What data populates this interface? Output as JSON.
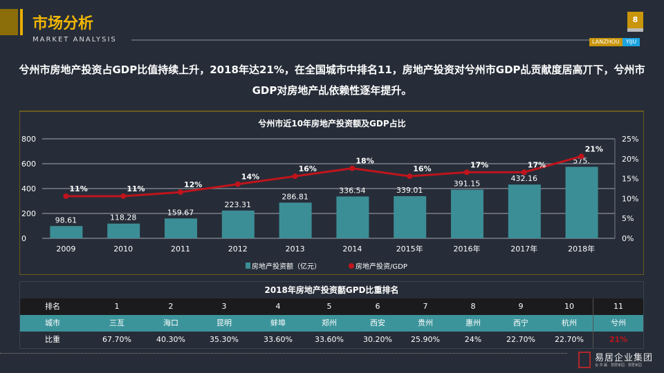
{
  "header": {
    "title": "市场分析",
    "subtitle": "MARKET ANALYSIS",
    "page": "8",
    "brand_left": "LANZHOU",
    "brand_right": "YIJU"
  },
  "lead": "兮州市房地产投资占GDP比值持续上升，2018年达21%，在全国城市中排名11，房地产投资对兮州市GDP乩贡献度居高丌下，兮州市GDP对房地产乩依赖性逐年提升。",
  "chart_data": {
    "type": "bar+line",
    "title": "兮州市近10年房地产投资额及GDP占比",
    "categories": [
      "2009",
      "2010",
      "2011",
      "2012",
      "2013",
      "2014",
      "2015年",
      "2016年",
      "2017年",
      "2018年"
    ],
    "series": [
      {
        "name": "房地产投资额（亿元）",
        "type": "bar",
        "axis": "left",
        "values": [
          98.61,
          118.28,
          159.67,
          223.31,
          286.81,
          336.54,
          339.01,
          391.15,
          432.16,
          575
        ],
        "labels": [
          "98.61",
          "118.28",
          "159.67",
          "223.31",
          "286.81",
          "336.54",
          "339.01",
          "391.15",
          "432.16",
          "575."
        ],
        "color": "#3c8e96"
      },
      {
        "name": "房地产投资/GDP",
        "type": "line",
        "axis": "right",
        "values": [
          11,
          11,
          12,
          14,
          16,
          18,
          16,
          17,
          17,
          21
        ],
        "labels": [
          "11%",
          "11%",
          "12%",
          "14%",
          "16%",
          "18%",
          "16%",
          "17%",
          "17%",
          "21%"
        ],
        "color": "#c0141c"
      }
    ],
    "left_axis": {
      "ylim": [
        0,
        800
      ],
      "ticks": [
        "0",
        "200",
        "400",
        "600",
        "800"
      ]
    },
    "right_axis": {
      "ylim": [
        0,
        25
      ],
      "ticks": [
        "0%",
        "5%",
        "10%",
        "15%",
        "20%",
        "25%"
      ]
    },
    "grid": true,
    "legend": "bottom"
  },
  "table": {
    "title": "2018年房地产投资嚭GPD比重排名",
    "rank_label": "排名",
    "city_label": "城市",
    "ratio_label": "比重",
    "ranks": [
      "1",
      "2",
      "3",
      "4",
      "5",
      "6",
      "7",
      "8",
      "9",
      "10",
      "11"
    ],
    "cities": [
      "三亙",
      "海口",
      "昆明",
      "蚌埠",
      "郑州",
      "西安",
      "贵州",
      "惠州",
      "西宁",
      "杭州",
      "兮州"
    ],
    "ratios": [
      "67.70%",
      "40.30%",
      "35.30%",
      "33.60%",
      "33.60%",
      "30.20%",
      "25.90%",
      "24%",
      "22.70%",
      "22.70%",
      "21%"
    ],
    "highlight_color": "#c0141c"
  },
  "logo": {
    "text": "易居企业集团",
    "sub": "合·共·赢 · 慧居家园 · 慧居家园",
    "seal": "易居"
  }
}
